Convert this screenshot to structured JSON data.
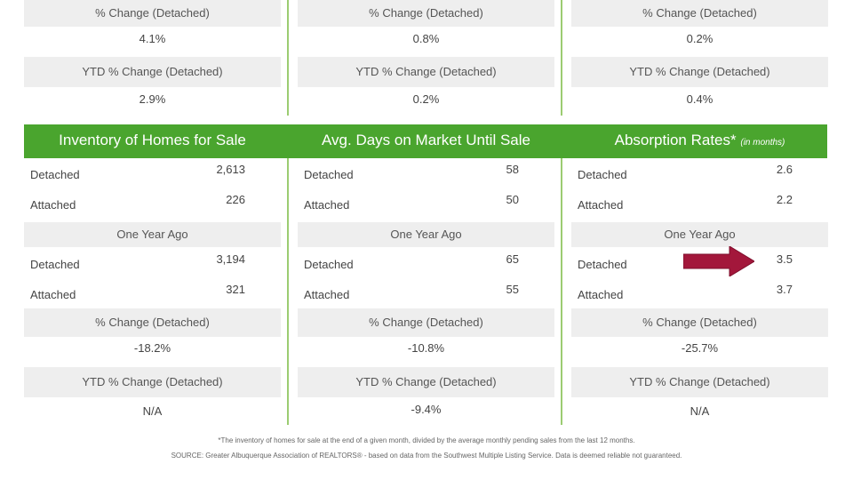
{
  "top": {
    "columns": [
      {
        "pct_label": "% Change (Detached)",
        "pct_value": "4.1%",
        "ytd_label": "YTD % Change (Detached)",
        "ytd_value": "2.9%"
      },
      {
        "pct_label": "% Change (Detached)",
        "pct_value": "0.8%",
        "ytd_label": "YTD % Change (Detached)",
        "ytd_value": "0.2%"
      },
      {
        "pct_label": "% Change (Detached)",
        "pct_value": "0.2%",
        "ytd_label": "YTD % Change (Detached)",
        "ytd_value": "0.4%"
      }
    ]
  },
  "bottom": {
    "columns": [
      {
        "title": "Inventory of Homes for Sale",
        "title_unit": "",
        "current": [
          {
            "label": "Detached",
            "value": "2,613"
          },
          {
            "label": "Attached",
            "value": "226"
          }
        ],
        "year_ago_label": "One Year Ago",
        "year_ago": [
          {
            "label": "Detached",
            "value": "3,194"
          },
          {
            "label": "Attached",
            "value": "321"
          }
        ],
        "pct_label": "% Change (Detached)",
        "pct_value": "-18.2%",
        "ytd_label": "YTD % Change (Detached)",
        "ytd_value": "N/A"
      },
      {
        "title": "Avg. Days on Market Until Sale",
        "title_unit": "",
        "current": [
          {
            "label": "Detached",
            "value": "58"
          },
          {
            "label": "Attached",
            "value": "50"
          }
        ],
        "year_ago_label": "One Year Ago",
        "year_ago": [
          {
            "label": "Detached",
            "value": "65"
          },
          {
            "label": "Attached",
            "value": "55"
          }
        ],
        "pct_label": "% Change (Detached)",
        "pct_value": "-10.8%",
        "ytd_label": "YTD % Change (Detached)",
        "ytd_value": "-9.4%"
      },
      {
        "title": "Absorption Rates*",
        "title_unit": "(in months)",
        "current": [
          {
            "label": "Detached",
            "value": "2.6"
          },
          {
            "label": "Attached",
            "value": "2.2"
          }
        ],
        "year_ago_label": "One Year Ago",
        "year_ago": [
          {
            "label": "Detached",
            "value": "3.5"
          },
          {
            "label": "Attached",
            "value": "3.7"
          }
        ],
        "pct_label": "% Change (Detached)",
        "pct_value": "-25.7%",
        "ytd_label": "YTD % Change (Detached)",
        "ytd_value": "N/A"
      }
    ]
  },
  "footnotes": {
    "absorption": "*The inventory of homes for sale at the end of a given month, divided by the average monthly pending sales from the last 12 months.",
    "source": "SOURCE: Greater Albuquerque Association of REALTORS® - based on data from the Southwest Multiple Listing Service. Data is deemed reliable not guaranteed."
  },
  "colors": {
    "banner": "#4aa52e",
    "separator": "#9ccc72",
    "row_bg": "#eeeeee",
    "arrow": "#a3173b"
  }
}
